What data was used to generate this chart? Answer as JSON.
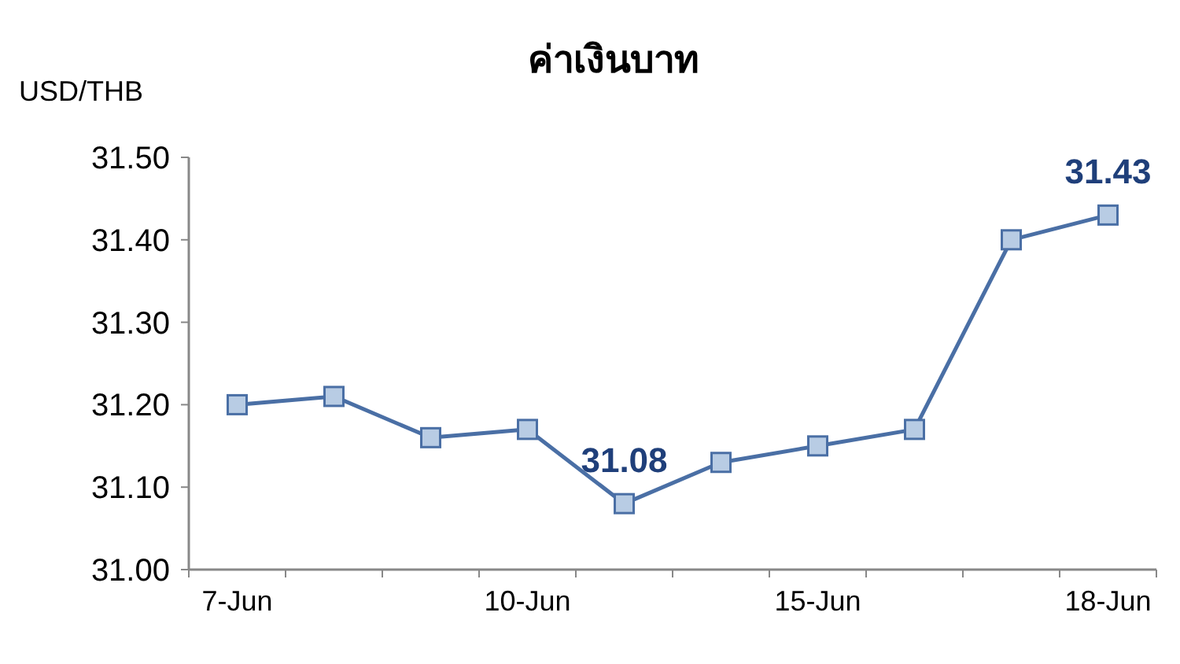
{
  "chart_data": {
    "type": "line",
    "title": "ค่าเงินบาท",
    "ylabel": "USD/THB",
    "categories": [
      "7-Jun",
      null,
      null,
      "10-Jun",
      null,
      null,
      "15-Jun",
      null,
      null,
      "18-Jun"
    ],
    "series": [
      {
        "color": "#4a6fa5",
        "values": [
          31.2,
          31.21,
          31.16,
          31.17,
          31.08,
          31.13,
          31.15,
          31.17,
          31.4,
          31.43
        ],
        "value_labels": [
          null,
          null,
          null,
          null,
          "31.08",
          null,
          null,
          null,
          null,
          "31.43"
        ]
      }
    ],
    "ylim": [
      31.0,
      31.5
    ],
    "yticks": [
      {
        "value": 31.0,
        "label": "31.00"
      },
      {
        "value": 31.1,
        "label": "31.10"
      },
      {
        "value": 31.2,
        "label": "31.20"
      },
      {
        "value": 31.3,
        "label": "31.30"
      },
      {
        "value": 31.4,
        "label": "31.40"
      },
      {
        "value": 31.5,
        "label": "31.50"
      }
    ],
    "marker": "square",
    "line_style": "solid",
    "grid": false
  }
}
